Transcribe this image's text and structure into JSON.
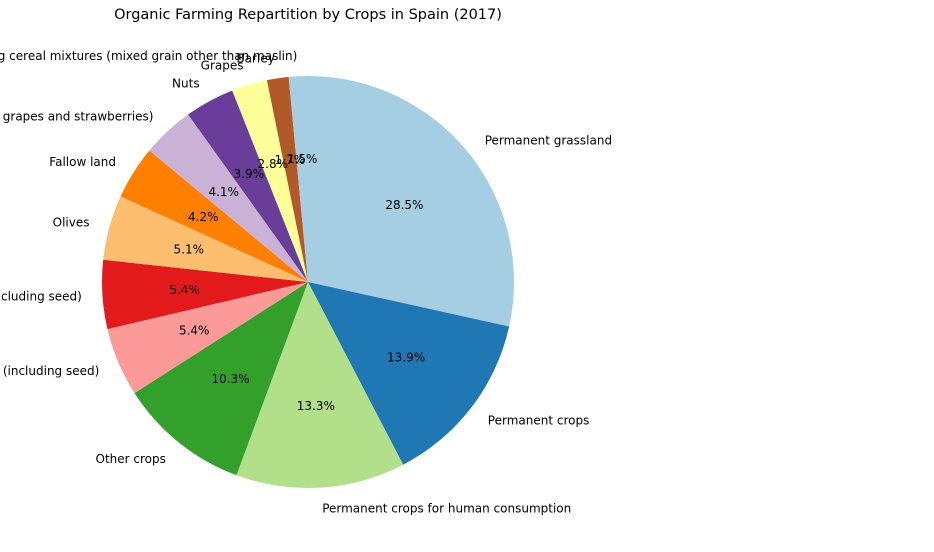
{
  "chart_data": {
    "type": "pie",
    "title": "Organic Farming Repartition by Crops in Spain (2017)",
    "start_angle_deg": 90,
    "direction": "clockwise",
    "slices": [
      {
        "label": "Permanent grassland",
        "value": 28.5,
        "pct_label": "28.5%",
        "color": "#a6cee3"
      },
      {
        "label": "Permanent crops",
        "value": 13.9,
        "pct_label": "13.9%",
        "color": "#1f78b4"
      },
      {
        "label": "Permanent crops for human consumption",
        "value": 13.3,
        "pct_label": "13.3%",
        "color": "#b2df8a"
      },
      {
        "label": "Other crops",
        "value": 10.3,
        "pct_label": "10.3%",
        "color": "#33a02c"
      },
      {
        "label": "Cereals for the production of grain (including seed)",
        "value": 5.4,
        "pct_label": "5.4%",
        "color": "#fb9a99"
      },
      {
        "label": "Cereals (excluding rice) for the production of grain (including seed)",
        "value": 5.4,
        "pct_label": "5.4%",
        "color": "#e31a1c"
      },
      {
        "label": "Olives",
        "value": 5.1,
        "pct_label": "5.1%",
        "color": "#fdbf6f"
      },
      {
        "label": "Fallow land",
        "value": 4.2,
        "pct_label": "4.2%",
        "color": "#ff7f00"
      },
      {
        "label": "Fruits, berries and nuts (excluding citrus fruits, grapes and strawberries)",
        "value": 4.1,
        "pct_label": "4.1%",
        "color": "#cab2d6"
      },
      {
        "label": "Nuts",
        "value": 3.9,
        "pct_label": "3.9%",
        "color": "#6a3d9a"
      },
      {
        "label": "Grapes",
        "value": 2.8,
        "pct_label": "2.8%",
        "color": "#ffff99"
      },
      {
        "label": "Barley",
        "value": 1.7,
        "pct_label": "1.7%",
        "color": "#b15928"
      },
      {
        "label": "Oats and spring cereal mixtures (mixed grain other than maslin)",
        "value": 1.5,
        "pct_label": "1.5%",
        "color": "#a6cee3"
      }
    ]
  }
}
